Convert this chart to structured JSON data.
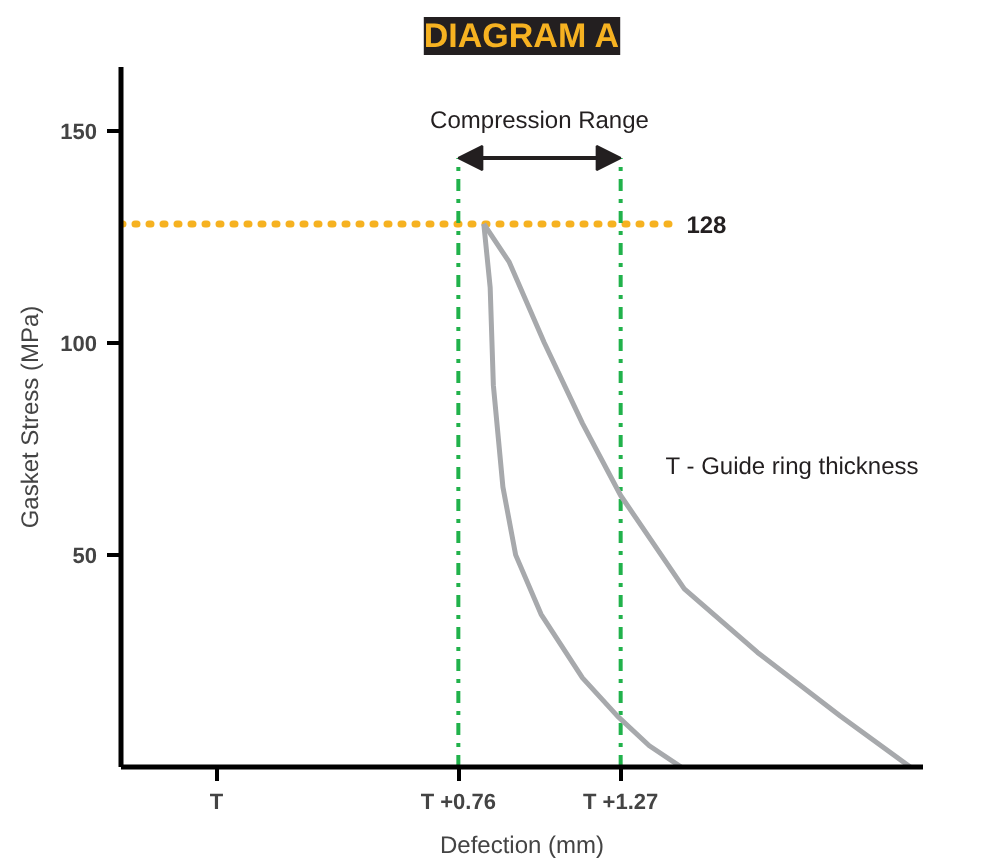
{
  "chart_data": {
    "type": "line",
    "title": "DIAGRAM A",
    "xlabel": "Defection (mm)",
    "ylabel": "Gasket Stress (MPa)",
    "xlim": [
      -0.3,
      2.22
    ],
    "ylim": [
      0,
      165
    ],
    "xticks": [
      {
        "value": 0,
        "label": "T"
      },
      {
        "value": 0.76,
        "label": "T +0.76"
      },
      {
        "value": 1.27,
        "label": "T +1.27"
      }
    ],
    "yticks": [
      50,
      100,
      150
    ],
    "grid": false,
    "marker": "none",
    "line_style": "solid",
    "series": [
      {
        "color": "#a7a9ac",
        "x": [
          0.84,
          0.86,
          0.87,
          0.9,
          0.94,
          1.02,
          1.15,
          1.26,
          1.36,
          1.46
        ],
        "values": [
          128,
          113,
          90,
          66,
          50,
          36,
          21,
          12,
          5,
          0
        ]
      },
      {
        "color": "#a7a9ac",
        "x": [
          0.84,
          0.92,
          1.03,
          1.15,
          1.27,
          1.47,
          1.7,
          1.96,
          2.18
        ],
        "values": [
          128,
          119,
          100,
          81,
          64,
          42,
          27,
          12,
          0
        ]
      }
    ],
    "ref_lines": [
      {
        "axis": "y",
        "value": 128,
        "label": "128",
        "color": "#f6b221",
        "line_style": "dotted"
      },
      {
        "axis": "x",
        "value": 0.76,
        "color": "#21b24b",
        "line_style": "dashdot"
      },
      {
        "axis": "x",
        "value": 1.27,
        "color": "#21b24b",
        "line_style": "dashdot"
      }
    ],
    "annotations": [
      "Compression Range",
      "T - Guide ring thickness"
    ]
  }
}
